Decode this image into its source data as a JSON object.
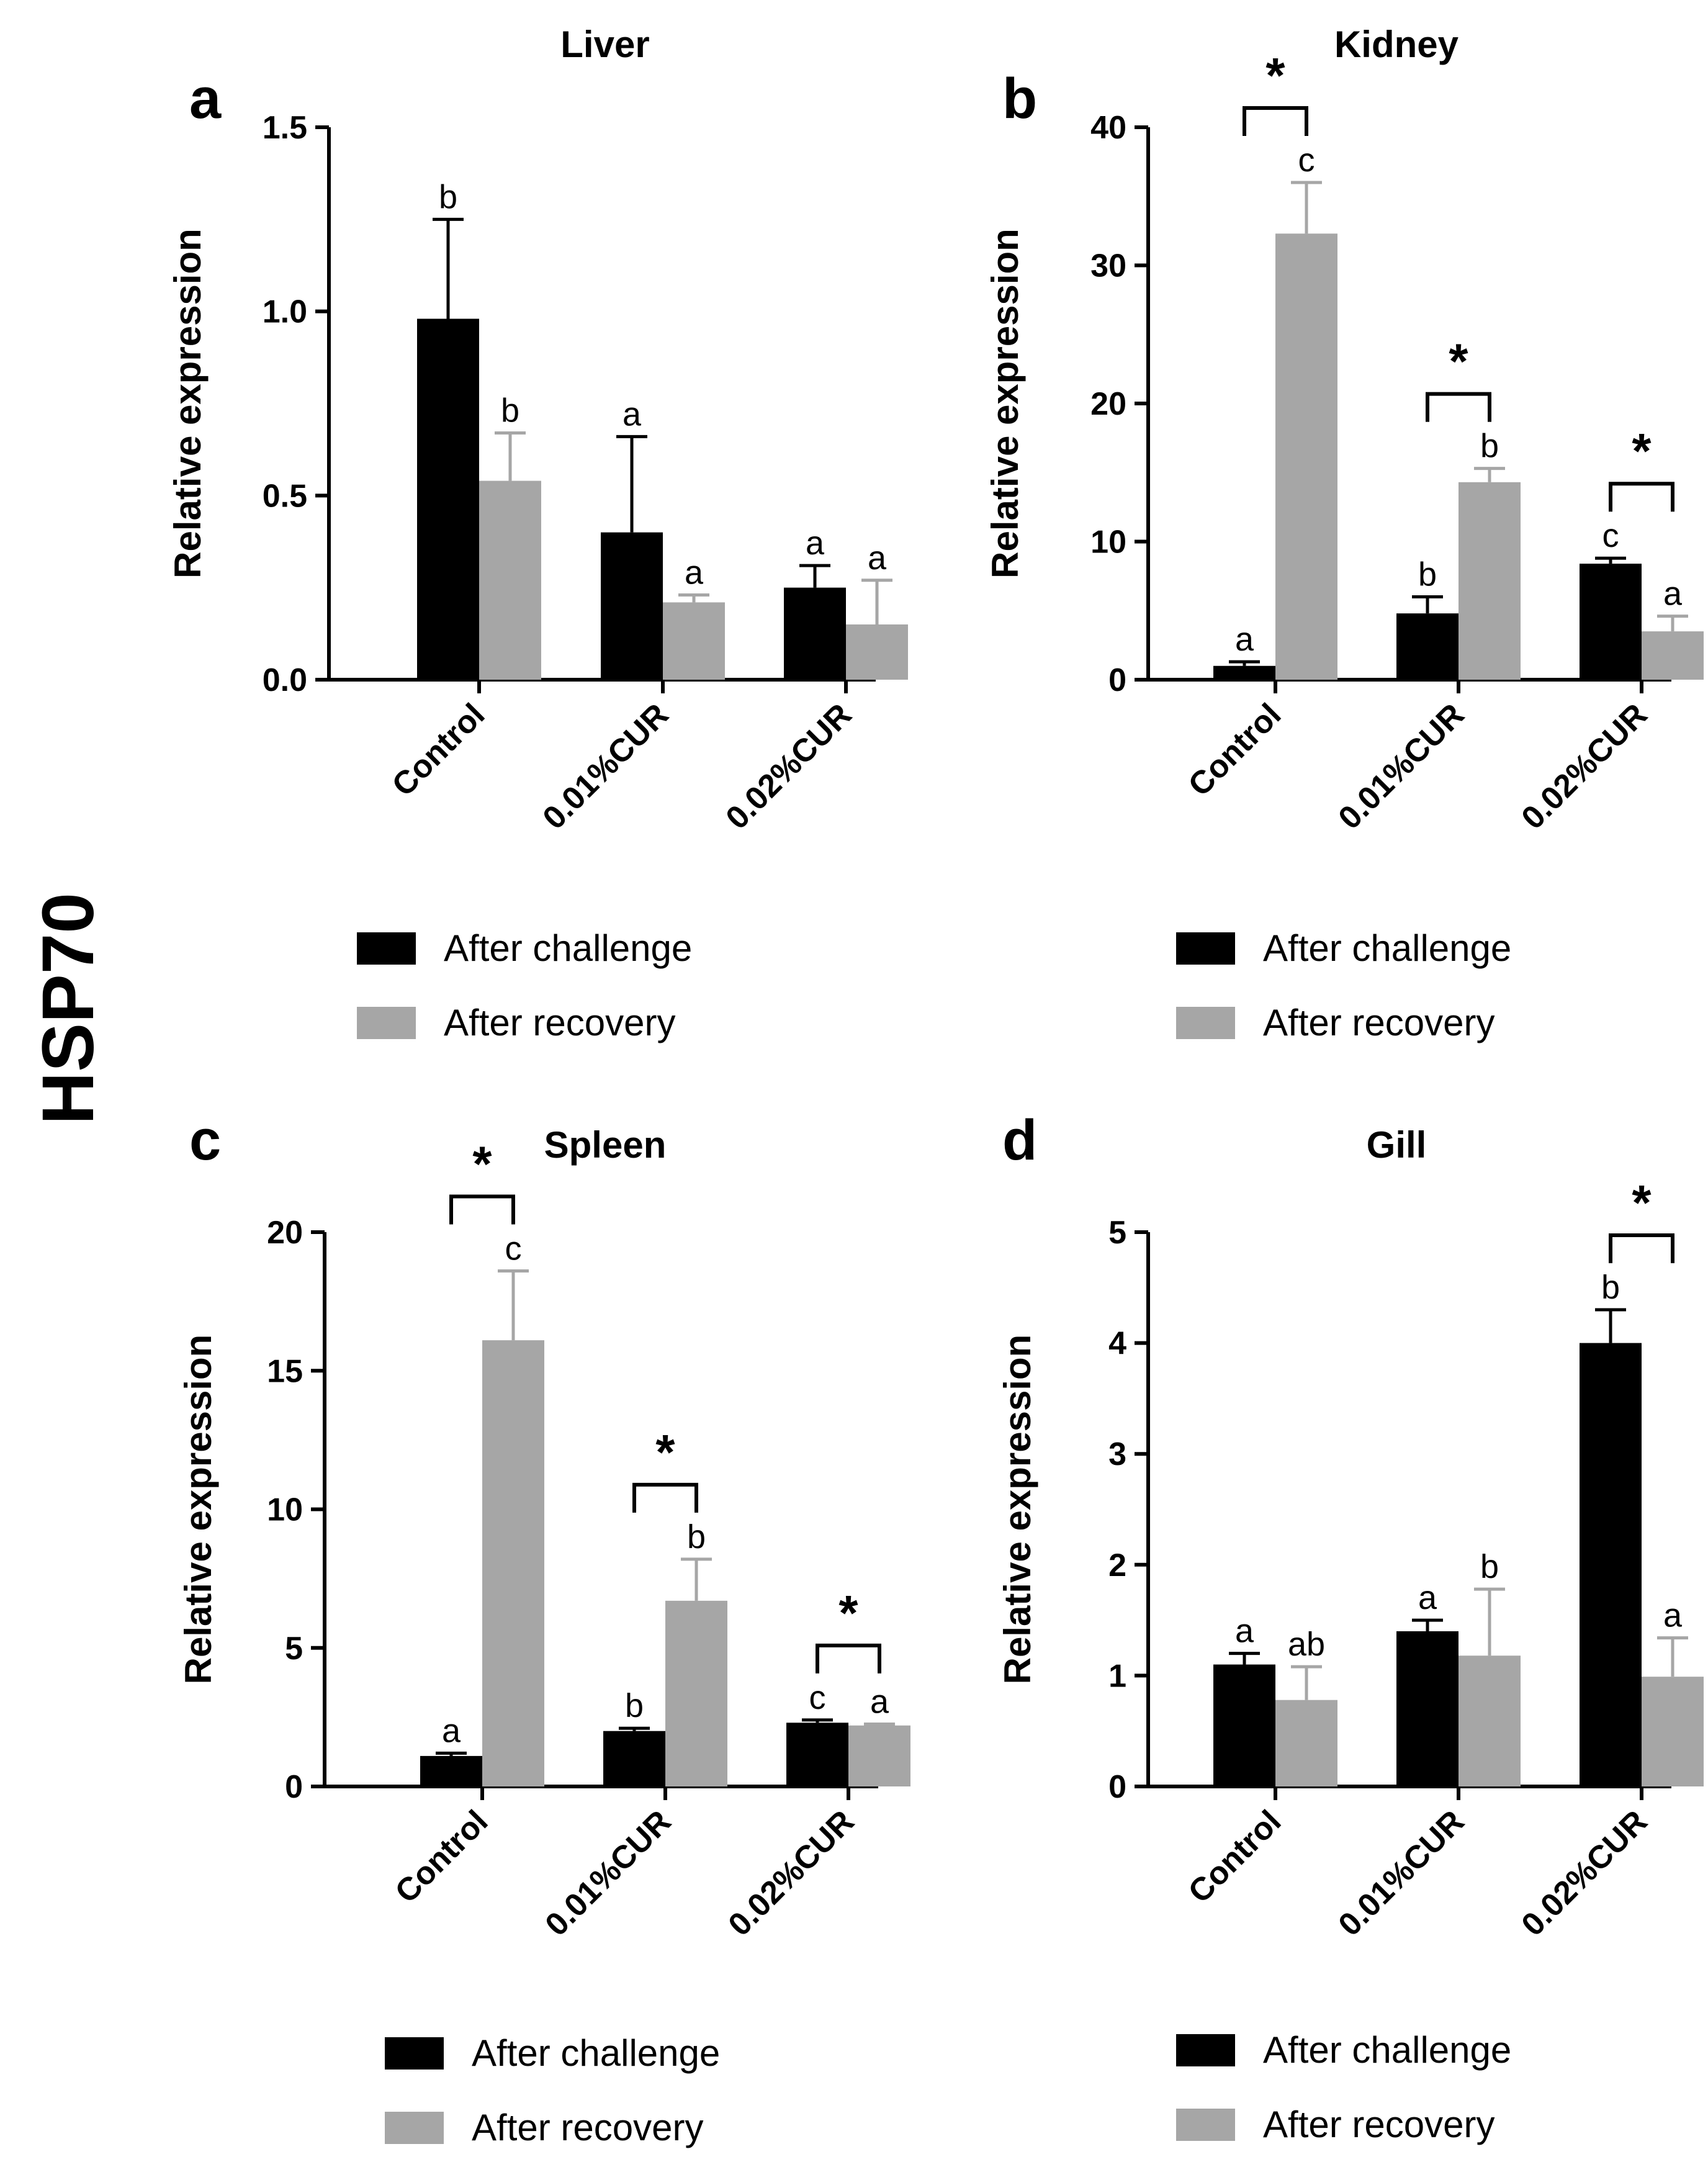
{
  "figure": {
    "side_label": "HSP70",
    "colors": {
      "challenge": "#000000",
      "recovery": "#a6a6a6",
      "axis": "#000000"
    }
  },
  "chart_data": [
    {
      "panel": "a",
      "type": "bar",
      "title": "Liver",
      "ylabel": "Relative expression",
      "xlabel": "",
      "ylim": [
        0,
        1.5
      ],
      "yticks": [
        "0.0",
        "0.5",
        "1.0",
        "1.5"
      ],
      "ytick_values": [
        0,
        0.5,
        1.0,
        1.5
      ],
      "categories": [
        "Control",
        "0.01%CUR",
        "0.02%CUR"
      ],
      "series": [
        {
          "name": "After challenge",
          "values": [
            0.98,
            0.4,
            0.25
          ],
          "errors": [
            0.27,
            0.26,
            0.06
          ],
          "letters": [
            "b",
            "a",
            "a"
          ]
        },
        {
          "name": "After recovery",
          "values": [
            0.54,
            0.21,
            0.15
          ],
          "errors": [
            0.13,
            0.02,
            0.12
          ],
          "letters": [
            "b",
            "a",
            "a"
          ]
        }
      ],
      "significance": [],
      "legend": [
        "After challenge",
        "After recovery"
      ],
      "legend_position": "bottom"
    },
    {
      "panel": "b",
      "type": "bar",
      "title": "Kidney",
      "ylabel": "Relative expression",
      "xlabel": "",
      "ylim": [
        0,
        40
      ],
      "yticks": [
        "0",
        "10",
        "20",
        "30",
        "40"
      ],
      "ytick_values": [
        0,
        10,
        20,
        30,
        40
      ],
      "categories": [
        "Control",
        "0.01%CUR",
        "0.02%CUR"
      ],
      "series": [
        {
          "name": "After challenge",
          "values": [
            1.0,
            4.8,
            8.4
          ],
          "errors": [
            0.3,
            1.2,
            0.4
          ],
          "letters": [
            "a",
            "b",
            "c"
          ]
        },
        {
          "name": "After recovery",
          "values": [
            32.3,
            14.3,
            3.5
          ],
          "errors": [
            3.7,
            1.0,
            1.1
          ],
          "letters": [
            "c",
            "b",
            "a"
          ]
        }
      ],
      "significance": [
        {
          "group": 0,
          "mark": "*"
        },
        {
          "group": 1,
          "mark": "*"
        },
        {
          "group": 2,
          "mark": "*"
        }
      ],
      "legend": [
        "After challenge",
        "After recovery"
      ],
      "legend_position": "bottom"
    },
    {
      "panel": "c",
      "type": "bar",
      "title": "Spleen",
      "ylabel": "Relative expression",
      "xlabel": "",
      "ylim": [
        0,
        20
      ],
      "yticks": [
        "0",
        "5",
        "10",
        "15",
        "20"
      ],
      "ytick_values": [
        0,
        5,
        10,
        15,
        20
      ],
      "categories": [
        "Control",
        "0.01%CUR",
        "0.02%CUR"
      ],
      "series": [
        {
          "name": "After challenge",
          "values": [
            1.1,
            2.0,
            2.3
          ],
          "errors": [
            0.1,
            0.1,
            0.1
          ],
          "letters": [
            "a",
            "b",
            "c"
          ]
        },
        {
          "name": "After recovery",
          "values": [
            16.1,
            6.7,
            2.2
          ],
          "errors": [
            2.5,
            1.5,
            0.05
          ],
          "letters": [
            "c",
            "b",
            "a"
          ]
        }
      ],
      "significance": [
        {
          "group": 0,
          "mark": "*"
        },
        {
          "group": 1,
          "mark": "*"
        },
        {
          "group": 2,
          "mark": "*"
        }
      ],
      "legend": [
        "After challenge",
        "After recovery"
      ],
      "legend_position": "bottom"
    },
    {
      "panel": "d",
      "type": "bar",
      "title": "Gill",
      "ylabel": "Relative expression",
      "xlabel": "",
      "ylim": [
        0,
        5
      ],
      "yticks": [
        "0",
        "1",
        "2",
        "3",
        "4",
        "5"
      ],
      "ytick_values": [
        0,
        1,
        2,
        3,
        4,
        5
      ],
      "categories": [
        "Control",
        "0.01%CUR",
        "0.02%CUR"
      ],
      "series": [
        {
          "name": "After challenge",
          "values": [
            1.1,
            1.4,
            4.0
          ],
          "errors": [
            0.1,
            0.1,
            0.3
          ],
          "letters": [
            "a",
            "a",
            "b"
          ]
        },
        {
          "name": "After recovery",
          "values": [
            0.78,
            1.18,
            0.99
          ],
          "errors": [
            0.3,
            0.6,
            0.35
          ],
          "letters": [
            "ab",
            "b",
            "a"
          ]
        }
      ],
      "significance": [
        {
          "group": 2,
          "mark": "*"
        }
      ],
      "legend": [
        "After challenge",
        "After recovery"
      ],
      "legend_position": "bottom"
    }
  ]
}
